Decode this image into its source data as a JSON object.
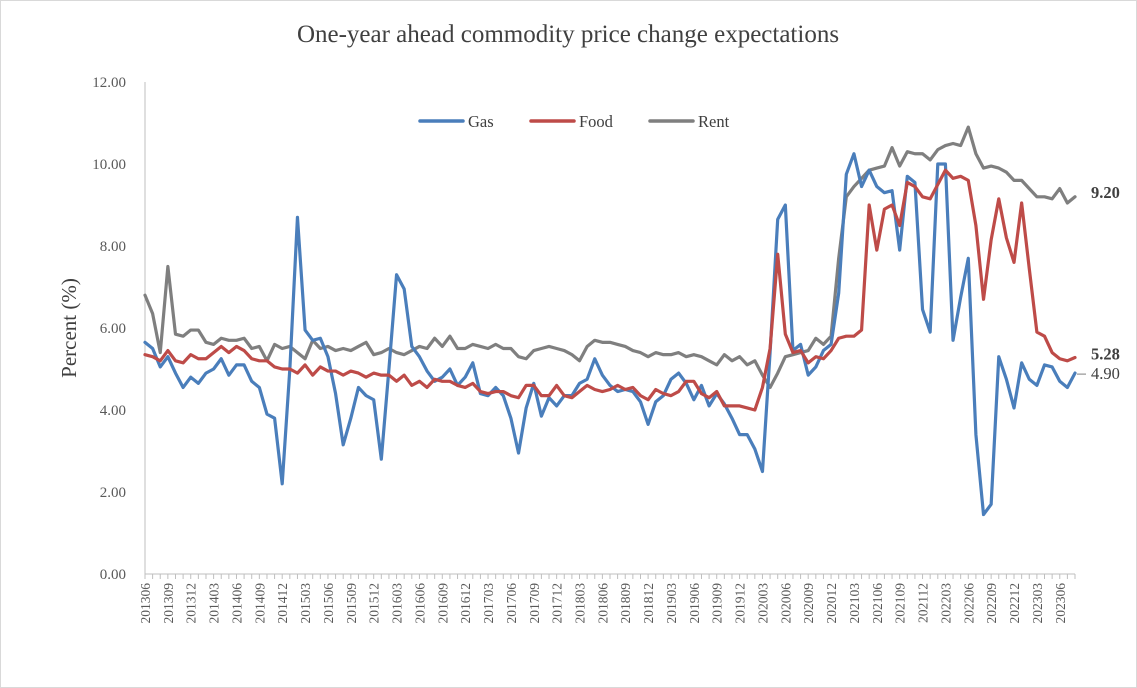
{
  "chart_data": {
    "type": "line",
    "title": "One-year ahead commodity price change expectations",
    "ylabel": "Percent (%)",
    "xlabel": "",
    "ylim": [
      0,
      12
    ],
    "yticks": [
      "0.00",
      "2.00",
      "4.00",
      "6.00",
      "8.00",
      "10.00",
      "12.00"
    ],
    "grid": false,
    "legend_position": "top-center",
    "x": [
      "201306",
      "201307",
      "201308",
      "201309",
      "201310",
      "201311",
      "201312",
      "201401",
      "201402",
      "201403",
      "201404",
      "201405",
      "201406",
      "201407",
      "201408",
      "201409",
      "201410",
      "201411",
      "201412",
      "201501",
      "201502",
      "201503",
      "201504",
      "201505",
      "201506",
      "201507",
      "201508",
      "201509",
      "201510",
      "201511",
      "201512",
      "201601",
      "201602",
      "201603",
      "201604",
      "201605",
      "201606",
      "201607",
      "201608",
      "201609",
      "201610",
      "201611",
      "201612",
      "201701",
      "201702",
      "201703",
      "201704",
      "201705",
      "201706",
      "201707",
      "201708",
      "201709",
      "201710",
      "201711",
      "201712",
      "201801",
      "201802",
      "201803",
      "201804",
      "201805",
      "201806",
      "201807",
      "201808",
      "201809",
      "201810",
      "201811",
      "201812",
      "201901",
      "201902",
      "201903",
      "201904",
      "201905",
      "201906",
      "201907",
      "201908",
      "201909",
      "201910",
      "201911",
      "201912",
      "202001",
      "202002",
      "202003",
      "202004",
      "202005",
      "202006",
      "202007",
      "202008",
      "202009",
      "202010",
      "202011",
      "202012",
      "202101",
      "202102",
      "202103",
      "202104",
      "202105",
      "202106",
      "202107",
      "202108",
      "202109",
      "202110",
      "202111",
      "202112",
      "202201",
      "202202",
      "202203",
      "202204",
      "202205",
      "202206",
      "202207",
      "202208",
      "202209",
      "202210",
      "202211",
      "202212",
      "202301",
      "202302",
      "202303",
      "202304",
      "202305",
      "202306",
      "202307",
      "202308"
    ],
    "xtick_labels": [
      "201306",
      "201309",
      "201312",
      "201403",
      "201406",
      "201409",
      "201412",
      "201503",
      "201506",
      "201509",
      "201512",
      "201603",
      "201606",
      "201609",
      "201612",
      "201703",
      "201706",
      "201709",
      "201712",
      "201803",
      "201806",
      "201809",
      "201812",
      "201903",
      "201906",
      "201909",
      "201912",
      "202003",
      "202006",
      "202009",
      "202012",
      "202103",
      "202106",
      "202109",
      "202112",
      "202203",
      "202206",
      "202209",
      "202212",
      "202303",
      "202306"
    ],
    "series": [
      {
        "name": "Gas",
        "color": "#4a7ebb",
        "values": [
          5.65,
          5.5,
          5.05,
          5.3,
          4.9,
          4.55,
          4.8,
          4.65,
          4.9,
          5.0,
          5.25,
          4.85,
          5.1,
          5.1,
          4.7,
          4.55,
          3.9,
          3.8,
          2.2,
          5.0,
          8.7,
          5.95,
          5.7,
          5.75,
          5.3,
          4.4,
          3.15,
          3.8,
          4.55,
          4.35,
          4.25,
          2.8,
          5.0,
          7.3,
          6.95,
          5.55,
          5.3,
          4.95,
          4.7,
          4.8,
          5.0,
          4.6,
          4.8,
          5.15,
          4.4,
          4.35,
          4.55,
          4.35,
          3.8,
          2.95,
          4.05,
          4.65,
          3.85,
          4.3,
          4.1,
          4.35,
          4.35,
          4.65,
          4.75,
          5.25,
          4.85,
          4.6,
          4.45,
          4.5,
          4.45,
          4.2,
          3.65,
          4.2,
          4.35,
          4.75,
          4.9,
          4.65,
          4.25,
          4.6,
          4.1,
          4.4,
          4.15,
          3.8,
          3.4,
          3.4,
          3.05,
          2.5,
          5.4,
          8.65,
          9.0,
          5.45,
          5.6,
          4.85,
          5.05,
          5.45,
          5.6,
          6.85,
          9.75,
          10.25,
          9.45,
          9.85,
          9.45,
          9.3,
          9.35,
          7.9,
          9.7,
          9.55,
          6.45,
          5.9,
          10.0,
          10.0,
          5.7,
          6.75,
          7.7,
          3.4,
          1.45,
          1.7,
          5.3,
          4.75,
          4.05,
          5.15,
          4.75,
          4.6,
          5.1,
          5.05,
          4.7,
          4.55,
          4.9
        ]
      },
      {
        "name": "Food",
        "color": "#be4b48",
        "values": [
          5.35,
          5.3,
          5.2,
          5.45,
          5.2,
          5.15,
          5.35,
          5.25,
          5.25,
          5.4,
          5.55,
          5.4,
          5.55,
          5.45,
          5.25,
          5.2,
          5.2,
          5.05,
          5.0,
          5.0,
          4.9,
          5.1,
          4.85,
          5.05,
          4.95,
          4.95,
          4.85,
          4.95,
          4.9,
          4.8,
          4.9,
          4.85,
          4.85,
          4.7,
          4.85,
          4.6,
          4.7,
          4.55,
          4.75,
          4.7,
          4.7,
          4.6,
          4.55,
          4.65,
          4.45,
          4.4,
          4.45,
          4.45,
          4.35,
          4.3,
          4.6,
          4.6,
          4.35,
          4.35,
          4.6,
          4.35,
          4.3,
          4.45,
          4.6,
          4.5,
          4.45,
          4.5,
          4.6,
          4.5,
          4.55,
          4.35,
          4.25,
          4.5,
          4.4,
          4.35,
          4.45,
          4.7,
          4.7,
          4.4,
          4.3,
          4.45,
          4.1,
          4.1,
          4.1,
          4.05,
          4.0,
          4.55,
          5.5,
          7.8,
          5.85,
          5.4,
          5.45,
          5.15,
          5.3,
          5.25,
          5.45,
          5.75,
          5.8,
          5.8,
          5.95,
          9.0,
          7.9,
          8.9,
          9.0,
          8.5,
          9.55,
          9.45,
          9.2,
          9.15,
          9.5,
          9.85,
          9.65,
          9.7,
          9.6,
          8.5,
          6.7,
          8.15,
          9.15,
          8.2,
          7.6,
          9.05,
          7.45,
          5.9,
          5.8,
          5.4,
          5.25,
          5.2,
          5.28
        ]
      },
      {
        "name": "Rent",
        "color": "#7f7f7f",
        "values": [
          6.8,
          6.35,
          5.4,
          7.5,
          5.85,
          5.8,
          5.95,
          5.95,
          5.65,
          5.6,
          5.75,
          5.7,
          5.7,
          5.75,
          5.5,
          5.55,
          5.2,
          5.6,
          5.5,
          5.55,
          5.4,
          5.25,
          5.7,
          5.5,
          5.55,
          5.45,
          5.5,
          5.45,
          5.55,
          5.65,
          5.35,
          5.4,
          5.5,
          5.4,
          5.35,
          5.45,
          5.55,
          5.5,
          5.75,
          5.55,
          5.8,
          5.5,
          5.5,
          5.6,
          5.55,
          5.5,
          5.6,
          5.5,
          5.5,
          5.3,
          5.25,
          5.45,
          5.5,
          5.55,
          5.5,
          5.45,
          5.35,
          5.2,
          5.55,
          5.7,
          5.65,
          5.65,
          5.6,
          5.55,
          5.45,
          5.4,
          5.3,
          5.4,
          5.35,
          5.35,
          5.4,
          5.3,
          5.35,
          5.3,
          5.2,
          5.1,
          5.35,
          5.2,
          5.3,
          5.1,
          5.2,
          4.85,
          4.55,
          4.9,
          5.3,
          5.35,
          5.4,
          5.45,
          5.75,
          5.6,
          5.8,
          7.7,
          9.2,
          9.45,
          9.65,
          9.85,
          9.9,
          9.95,
          10.4,
          9.95,
          10.3,
          10.25,
          10.25,
          10.1,
          10.35,
          10.45,
          10.5,
          10.45,
          10.9,
          10.25,
          9.9,
          9.95,
          9.9,
          9.8,
          9.6,
          9.6,
          9.4,
          9.2,
          9.2,
          9.15,
          9.4,
          9.05,
          9.2
        ]
      }
    ],
    "endpoint_labels": [
      {
        "series": "Rent",
        "text": "9.20",
        "value": 9.2,
        "bold": true
      },
      {
        "series": "Food",
        "text": "5.28",
        "value": 5.28,
        "bold": true
      },
      {
        "series": "Gas",
        "text": "4.90",
        "value": 4.9,
        "bold": false
      }
    ]
  }
}
